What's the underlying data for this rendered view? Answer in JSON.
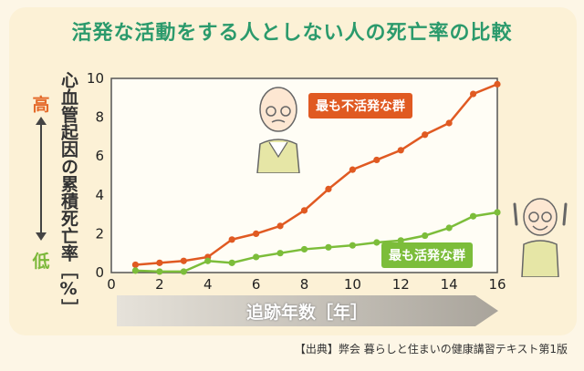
{
  "title": "活発な活動をする人としない人の死亡率の比較",
  "y_axis_label": "心血管起因の累積死亡率［%］",
  "y_high_label": "高",
  "y_low_label": "低",
  "x_axis_label": "追跡年数［年］",
  "source_note": "【出典】弊会 暮らしと住まいの健康講習テキスト第1版",
  "colors": {
    "inactive": "#e05a22",
    "active": "#7cbd3a",
    "title": "#2b9a6c"
  },
  "chart_data": {
    "type": "line",
    "x": [
      1,
      2,
      3,
      4,
      5,
      6,
      7,
      8,
      9,
      10,
      11,
      12,
      13,
      14,
      15,
      16
    ],
    "xlim": [
      0,
      16
    ],
    "ylim": [
      0,
      10
    ],
    "x_ticks": [
      "0",
      "2",
      "4",
      "6",
      "8",
      "10",
      "12",
      "14",
      "16"
    ],
    "y_ticks": [
      "0",
      "2",
      "4",
      "6",
      "8",
      "10"
    ],
    "grid": true,
    "xlabel": "追跡年数［年］",
    "ylabel": "心血管起因の累積死亡率［%］",
    "series": [
      {
        "name": "最も不活発な群",
        "values": [
          0.4,
          0.5,
          0.6,
          0.8,
          1.7,
          2.0,
          2.4,
          3.2,
          4.3,
          5.3,
          5.8,
          6.3,
          7.1,
          7.7,
          9.2,
          9.7
        ]
      },
      {
        "name": "最も活発な群",
        "values": [
          0.1,
          0.05,
          0.05,
          0.6,
          0.5,
          0.8,
          1.0,
          1.2,
          1.3,
          1.4,
          1.55,
          1.65,
          1.9,
          2.3,
          2.9,
          3.1
        ]
      }
    ]
  }
}
